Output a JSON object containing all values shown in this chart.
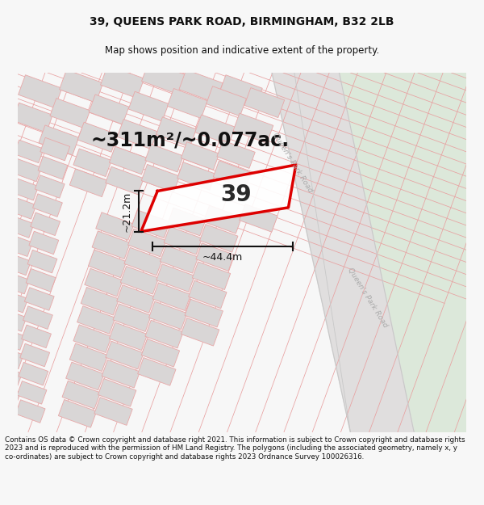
{
  "title_line1": "39, QUEENS PARK ROAD, BIRMINGHAM, B32 2LB",
  "title_line2": "Map shows position and indicative extent of the property.",
  "area_label": "~311m²/~0.077ac.",
  "property_number": "39",
  "width_label": "~44.4m",
  "height_label": "~21.2m",
  "footer_text": "Contains OS data © Crown copyright and database right 2021. This information is subject to Crown copyright and database rights 2023 and is reproduced with the permission of HM Land Registry. The polygons (including the associated geometry, namely x, y co-ordinates) are subject to Crown copyright and database rights 2023 Ordnance Survey 100026316.",
  "bg_color": "#f7f7f7",
  "map_bg": "#f2f0f0",
  "green_area": "#dce8da",
  "road_fill": "#e0dede",
  "property_outline_color": "#dd0000",
  "property_fill": "white",
  "building_fill": "#d9d6d6",
  "building_edge": "#e8a8a8",
  "dim_color": "#111111",
  "road_label_color": "#aaaaaa",
  "title_color": "#111111",
  "footer_color": "#111111",
  "map_line_color": "#e8a0a0",
  "road_border_color": "#c8c8c8"
}
